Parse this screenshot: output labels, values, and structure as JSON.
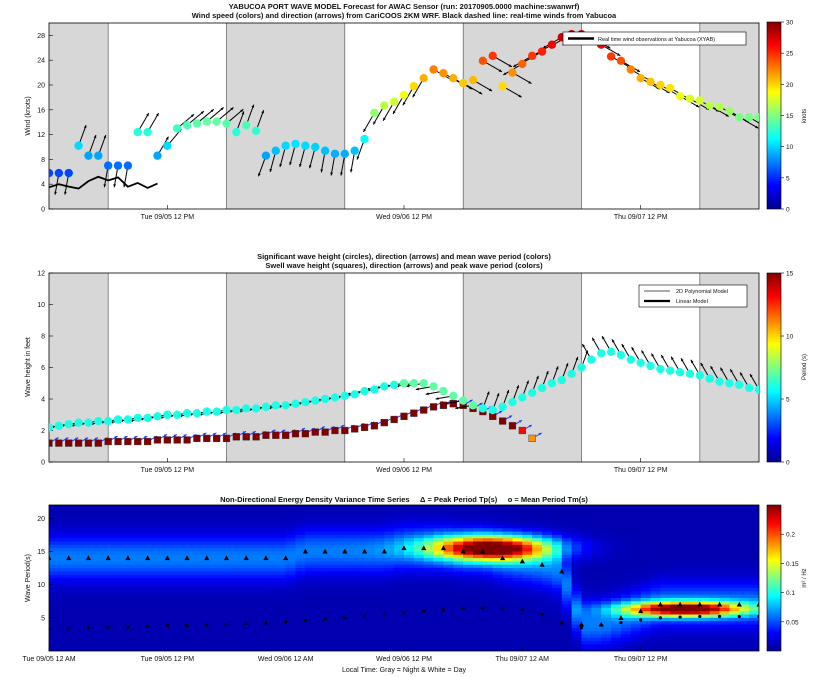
{
  "panels": {
    "wind": {
      "title1": "YABUCOA PORT WAVE MODEL Forecast for AWAC Sensor (run: 20170905.0000 machine:swanwrf)",
      "title2": "Wind speed (colors) and direction (arrows) from CariCOOS 2KM WRF. Black dashed line: real-time winds from Yabucoa",
      "ylabel": "Wind (knots)",
      "legend_label": "Real time wind observations at Yabucoa (XYAB)",
      "colorbar_label": "knots",
      "xticks": [
        "Tue 09/05 12 PM",
        "Wed 09/06 12 PM",
        "Thu 09/07 12 PM"
      ]
    },
    "wave": {
      "title1": "Significant wave height (circles), direction (arrows) and mean wave period (colors)",
      "title2": "Swell wave height (squares), direction (arrows) and peak wave period (colors)",
      "ylabel": "Wave height in feet",
      "legend_poly": "2D Polynomial Model",
      "legend_linear": "Linear Model",
      "colorbar_label": "Period (s)",
      "xticks": [
        "Tue 09/05 12 PM",
        "Wed 09/06 12 PM",
        "Thu 09/07 12 PM"
      ]
    },
    "energy": {
      "title": "Non-Directional Energy Density Variance Time Series     Δ = Peak Period Tp(s)     o = Mean Period Tm(s)",
      "ylabel": "Wave Period(s)",
      "xlabel": "Local Time: Gray = Night & White = Day",
      "colorbar_label": "m² / Hz",
      "xticks": [
        "Tue 09/05 12 AM",
        "Tue 09/05 12 PM",
        "Wed 09/06 12 AM",
        "Wed 09/06 12 PM",
        "Thu 09/07 12 AM",
        "Thu 09/07 12 PM"
      ]
    }
  },
  "colors": {
    "night": "#d7d7d7",
    "day": "#ffffff",
    "observed_line": "#000000",
    "swell_square": "#8b1a0e"
  },
  "chart_data": [
    {
      "type": "scatter",
      "panel": "wind",
      "x_unit": "hours since Tue 09/05 12 AM",
      "ylim": [
        0,
        30
      ],
      "yticks": [
        0,
        4,
        8,
        12,
        16,
        20,
        24,
        28
      ],
      "xlim": [
        0,
        72
      ],
      "night_bands": [
        [
          0,
          6
        ],
        [
          18,
          30
        ],
        [
          42,
          54
        ],
        [
          66,
          72
        ]
      ],
      "series": [
        {
          "name": "Wind speed",
          "x": [
            0,
            1,
            2,
            3,
            4,
            5,
            6,
            7,
            8,
            9,
            10,
            11,
            12,
            13,
            14,
            15,
            16,
            17,
            18,
            19,
            20,
            21,
            22,
            23,
            24,
            25,
            26,
            27,
            28,
            29,
            30,
            31,
            32,
            33,
            34,
            35,
            36,
            37,
            38,
            39,
            40,
            41,
            42,
            43,
            44,
            45,
            46,
            47,
            48,
            49,
            50,
            51,
            52,
            53,
            54,
            55,
            56,
            57,
            58,
            59,
            60,
            61,
            62,
            63,
            64,
            65,
            66,
            67,
            68,
            69,
            70,
            71,
            72
          ],
          "speed": [
            5.8,
            5.8,
            5.8,
            10.2,
            8.6,
            8.6,
            7.0,
            7.0,
            7.0,
            12.4,
            12.4,
            8.6,
            10.2,
            13.0,
            13.5,
            13.8,
            14.1,
            14.1,
            13.8,
            12.4,
            13.5,
            12.6,
            8.6,
            9.4,
            10.2,
            10.5,
            10.2,
            10.0,
            9.4,
            8.9,
            8.9,
            9.4,
            11.3,
            15.5,
            16.7,
            17.3,
            18.4,
            19.8,
            21.1,
            22.5,
            21.9,
            21.1,
            20.3,
            20.8,
            23.9,
            24.7,
            19.8,
            22.0,
            23.4,
            24.7,
            25.4,
            26.5,
            27.7,
            28.2,
            28.2,
            27.7,
            26.5,
            24.6,
            23.9,
            22.5,
            21.1,
            20.5,
            20.0,
            19.5,
            18.2,
            17.8,
            17.5,
            16.7,
            16.5,
            15.8,
            14.8,
            14.8,
            14.8
          ],
          "direction_deg_from": [
            10,
            10,
            10,
            200,
            200,
            200,
            10,
            10,
            10,
            210,
            210,
            210,
            220,
            230,
            230,
            230,
            230,
            230,
            230,
            200,
            200,
            200,
            20,
            15,
            15,
            15,
            15,
            15,
            10,
            10,
            10,
            10,
            20,
            30,
            30,
            30,
            30,
            30,
            30,
            300,
            300,
            300,
            300,
            300,
            300,
            300,
            300,
            300,
            60,
            60,
            60,
            60,
            60,
            60,
            60,
            300,
            300,
            300,
            300,
            300,
            300,
            300,
            300,
            300,
            300,
            300,
            300,
            300,
            300,
            300,
            300,
            300,
            300
          ]
        },
        {
          "name": "Real time wind observations at Yabucoa (XYAB)",
          "x": [
            0,
            1,
            2,
            3,
            4,
            5,
            6,
            7,
            8,
            9,
            10,
            11
          ],
          "y": [
            3.5,
            4.0,
            3.6,
            3.3,
            4.5,
            5.2,
            4.6,
            5.1,
            3.6,
            4.2,
            3.4,
            4.1
          ]
        }
      ],
      "colorbar": {
        "min": 0,
        "max": 30,
        "ticks": [
          0,
          5,
          10,
          15,
          20,
          25,
          30
        ],
        "label": "knots"
      }
    },
    {
      "type": "scatter",
      "panel": "wave",
      "x_unit": "hours since Tue 09/05 12 AM",
      "ylim": [
        0,
        12
      ],
      "yticks": [
        0,
        2,
        4,
        6,
        8,
        10,
        12
      ],
      "xlim": [
        0,
        72
      ],
      "night_bands": [
        [
          0,
          6
        ],
        [
          18,
          30
        ],
        [
          42,
          54
        ],
        [
          66,
          72
        ]
      ],
      "series": [
        {
          "name": "Significant wave height",
          "marker": "circle",
          "x": [
            0,
            1,
            2,
            3,
            4,
            5,
            6,
            7,
            8,
            9,
            10,
            11,
            12,
            13,
            14,
            15,
            16,
            17,
            18,
            19,
            20,
            21,
            22,
            23,
            24,
            25,
            26,
            27,
            28,
            29,
            30,
            31,
            32,
            33,
            34,
            35,
            36,
            37,
            38,
            39,
            40,
            41,
            42,
            43,
            44,
            45,
            46,
            47,
            48,
            49,
            50,
            51,
            52,
            53,
            54,
            55,
            56,
            57,
            58,
            59,
            60,
            61,
            62,
            63,
            64,
            65,
            66,
            67,
            68,
            69,
            70,
            71,
            72
          ],
          "height_ft": [
            2.2,
            2.3,
            2.4,
            2.5,
            2.5,
            2.6,
            2.6,
            2.7,
            2.7,
            2.8,
            2.8,
            2.9,
            3.0,
            3.0,
            3.1,
            3.1,
            3.2,
            3.2,
            3.3,
            3.3,
            3.4,
            3.4,
            3.5,
            3.6,
            3.6,
            3.7,
            3.8,
            3.9,
            4.0,
            4.1,
            4.2,
            4.3,
            4.5,
            4.6,
            4.8,
            4.9,
            5.0,
            5.0,
            5.0,
            4.8,
            4.5,
            4.2,
            3.9,
            3.6,
            3.4,
            3.3,
            3.5,
            3.8,
            4.1,
            4.4,
            4.7,
            5.0,
            5.2,
            5.6,
            6.0,
            6.5,
            6.9,
            7.0,
            6.8,
            6.5,
            6.3,
            6.1,
            5.9,
            5.8,
            5.7,
            5.6,
            5.5,
            5.3,
            5.1,
            5.0,
            4.9,
            4.7,
            4.6
          ],
          "period_s": [
            6,
            6,
            6,
            6,
            6,
            6,
            6,
            6,
            6,
            6,
            6,
            6,
            6,
            6,
            6,
            6,
            6,
            6,
            6,
            6,
            6,
            6,
            6,
            6,
            6,
            6,
            6,
            6,
            6,
            6,
            6,
            6,
            6,
            6,
            6,
            6,
            7,
            7,
            7,
            7,
            7,
            7,
            7,
            7,
            6,
            6,
            6,
            6,
            6,
            6,
            6,
            6,
            6,
            6,
            6,
            6,
            6,
            6,
            6,
            6,
            6,
            6,
            6,
            6,
            6,
            6,
            6,
            6,
            6,
            6,
            6,
            6,
            6
          ],
          "direction_deg_from": [
            80,
            80,
            80,
            80,
            80,
            80,
            80,
            80,
            80,
            80,
            80,
            80,
            80,
            80,
            80,
            80,
            80,
            80,
            80,
            80,
            80,
            80,
            80,
            80,
            80,
            80,
            80,
            80,
            80,
            80,
            80,
            80,
            80,
            80,
            80,
            80,
            80,
            80,
            80,
            80,
            80,
            80,
            80,
            80,
            200,
            200,
            200,
            200,
            200,
            200,
            200,
            200,
            200,
            200,
            200,
            150,
            150,
            150,
            150,
            150,
            150,
            150,
            150,
            150,
            150,
            150,
            150,
            150,
            150,
            150,
            150,
            150,
            150
          ]
        },
        {
          "name": "Swell wave height",
          "marker": "square",
          "x": [
            0,
            1,
            2,
            3,
            4,
            5,
            6,
            7,
            8,
            9,
            10,
            11,
            12,
            13,
            14,
            15,
            16,
            17,
            18,
            19,
            20,
            21,
            22,
            23,
            24,
            25,
            26,
            27,
            28,
            29,
            30,
            31,
            32,
            33,
            34,
            35,
            36,
            37,
            38,
            39,
            40,
            41,
            42,
            43,
            44,
            45,
            46,
            47,
            48,
            49
          ],
          "height_ft": [
            1.2,
            1.2,
            1.2,
            1.2,
            1.2,
            1.2,
            1.3,
            1.3,
            1.3,
            1.3,
            1.3,
            1.4,
            1.4,
            1.4,
            1.4,
            1.5,
            1.5,
            1.5,
            1.5,
            1.6,
            1.6,
            1.6,
            1.7,
            1.7,
            1.7,
            1.8,
            1.8,
            1.9,
            1.9,
            2.0,
            2.0,
            2.1,
            2.2,
            2.3,
            2.5,
            2.7,
            2.9,
            3.1,
            3.3,
            3.5,
            3.6,
            3.7,
            3.6,
            3.4,
            3.2,
            2.9,
            2.6,
            2.3,
            2.0,
            1.5
          ],
          "period_s": [
            15,
            15,
            15,
            15,
            15,
            15,
            15,
            15,
            15,
            15,
            15,
            15,
            15,
            15,
            15,
            15,
            15,
            15,
            15,
            15,
            15,
            15,
            15,
            15,
            15,
            15,
            15,
            15,
            15,
            15,
            15,
            15,
            15,
            15,
            15,
            15,
            15,
            15,
            15,
            15,
            15,
            15,
            15,
            15,
            15,
            15,
            15,
            15,
            13,
            11
          ]
        }
      ],
      "colorbar": {
        "min": 0,
        "max": 15,
        "ticks": [
          0,
          5,
          10,
          15
        ],
        "label": "Period (s)"
      }
    },
    {
      "type": "heatmap",
      "panel": "energy",
      "x_unit": "hours since Tue 09/05 12 AM",
      "xlim": [
        0,
        72
      ],
      "ylim": [
        0,
        22
      ],
      "yticks": [
        5,
        10,
        15,
        20
      ],
      "hotspots": [
        {
          "x": 45.0,
          "y": 15.5,
          "sx": 6.0,
          "sy": 1.8,
          "energy": 0.24
        },
        {
          "x": 64.5,
          "y": 6.3,
          "sx": 6.0,
          "sy": 1.1,
          "energy": 0.23
        }
      ],
      "series": [
        {
          "name": "Peak Period Tp(s)",
          "marker": "triangle",
          "x": [
            0,
            2,
            4,
            6,
            8,
            10,
            12,
            14,
            16,
            18,
            20,
            22,
            24,
            26,
            28,
            30,
            32,
            34,
            36,
            38,
            40,
            42,
            44,
            46,
            48,
            50,
            52,
            54,
            56,
            58,
            60,
            62,
            64,
            66,
            68,
            70,
            72
          ],
          "y": [
            14,
            14,
            14,
            14,
            14,
            14,
            14,
            14,
            14,
            14,
            14,
            14,
            14,
            15,
            15,
            15,
            15,
            15,
            15.5,
            15.5,
            15.5,
            15,
            15,
            14,
            13.5,
            13,
            12,
            4,
            4,
            5,
            6,
            7,
            7,
            7,
            7,
            7,
            7
          ]
        },
        {
          "name": "Mean Period Tm(s)",
          "marker": "circle",
          "x": [
            0,
            2,
            4,
            6,
            8,
            10,
            12,
            14,
            16,
            18,
            20,
            22,
            24,
            26,
            28,
            30,
            32,
            34,
            36,
            38,
            40,
            42,
            44,
            46,
            48,
            50,
            52,
            54,
            56,
            58,
            60,
            62,
            64,
            66,
            68,
            70,
            72
          ],
          "y": [
            3.3,
            3.4,
            3.5,
            3.6,
            3.6,
            3.7,
            3.8,
            3.8,
            3.9,
            4.0,
            4.1,
            4.2,
            4.4,
            4.6,
            4.8,
            5.0,
            5.2,
            5.5,
            5.8,
            6.0,
            6.2,
            6.4,
            6.5,
            6.4,
            6.2,
            5.5,
            4.2,
            3.5,
            3.9,
            4.3,
            4.7,
            5.0,
            5.1,
            5.2,
            5.2,
            5.2,
            5.2
          ]
        }
      ],
      "colorbar": {
        "min": 0,
        "max": 0.25,
        "ticks": [
          0.05,
          0.1,
          0.15,
          0.2
        ],
        "label": "m² / Hz"
      }
    }
  ]
}
